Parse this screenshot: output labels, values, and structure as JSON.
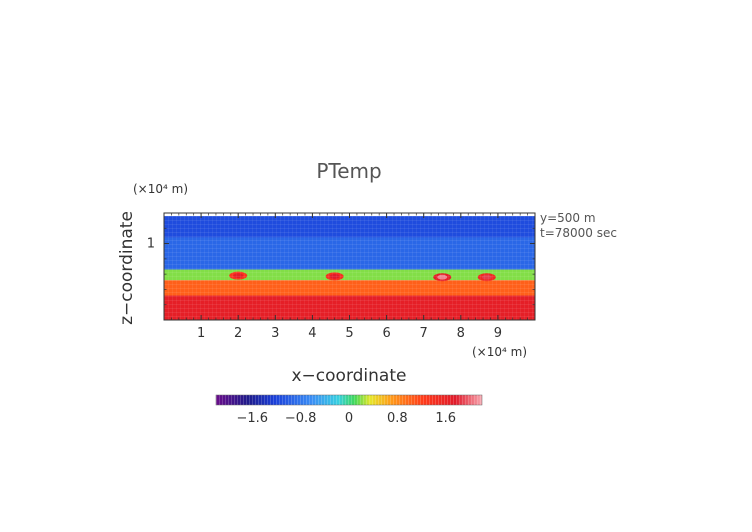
{
  "chart_data": {
    "type": "heatmap",
    "title": "PTemp",
    "xlabel": "x−coordinate",
    "ylabel": "z−coordinate",
    "x_unit": "(×10⁴ m)",
    "z_unit": "(×10⁴ m)",
    "xlim": [
      0,
      10
    ],
    "zlim": [
      0,
      1.4
    ],
    "x_ticks": [
      "1",
      "2",
      "3",
      "4",
      "5",
      "6",
      "7",
      "8",
      "9"
    ],
    "z_ticks": [
      "1"
    ],
    "annotations": [
      "y=500 m",
      "t=78000 sec"
    ],
    "colorbar": {
      "min": -2.2,
      "max": 2.2,
      "ticks": [
        "−1.6",
        "−0.8",
        "0",
        "0.8",
        "1.6"
      ],
      "tick_values": [
        -1.6,
        -0.8,
        0,
        0.8,
        1.6
      ]
    },
    "field_layers": [
      {
        "z_bottom": 1.08,
        "z_top": 1.36,
        "value": -1.1
      },
      {
        "z_bottom": 0.66,
        "z_top": 1.08,
        "value": -0.9
      },
      {
        "z_bottom": 0.52,
        "z_top": 0.66,
        "value": 0.2
      },
      {
        "z_bottom": 0.32,
        "z_top": 0.52,
        "value": 1.0
      },
      {
        "z_bottom": 0.0,
        "z_top": 0.32,
        "value": 1.7
      }
    ],
    "hot_spots": [
      {
        "x": 2.0,
        "z": 0.58,
        "value": 1.7
      },
      {
        "x": 4.6,
        "z": 0.57,
        "value": 1.8
      },
      {
        "x": 7.5,
        "z": 0.56,
        "value": 2.1
      },
      {
        "x": 8.7,
        "z": 0.56,
        "value": 1.9
      }
    ]
  }
}
